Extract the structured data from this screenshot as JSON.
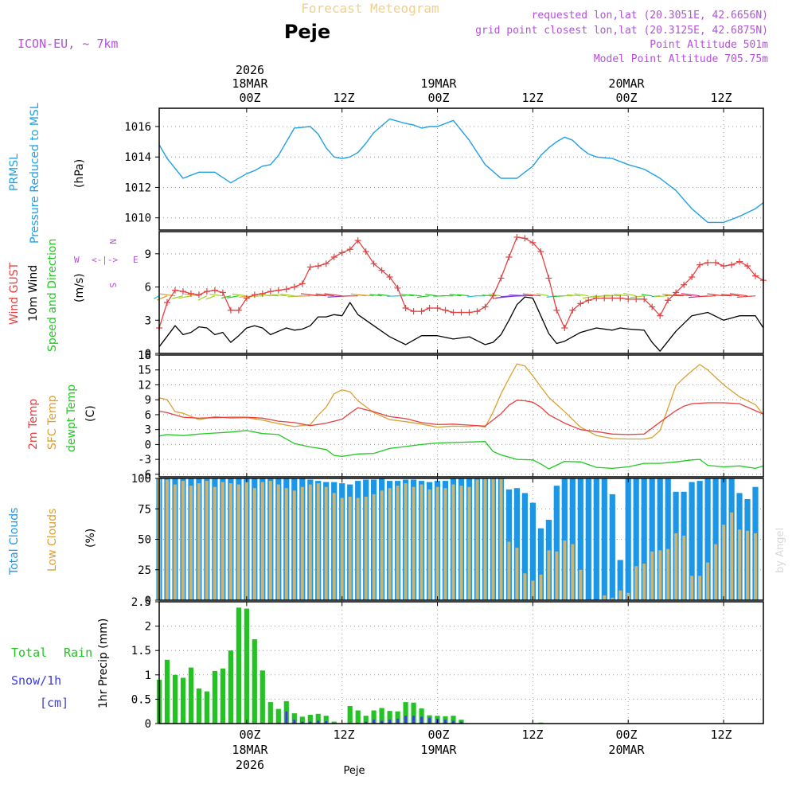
{
  "header": {
    "product_title": "Forecast Meteogram",
    "location": "Peje",
    "model": "ICON-EU, ~ 7km",
    "requested": "requested lon,lat (20.3051E, 42.6656N)",
    "grid_point": "grid point closest lon,lat (20.3125E, 42.6875N)",
    "point_altitude": "Point Altitude 501m",
    "model_altitude": "Model Point Altitude 705.75m",
    "footer_location": "Peje",
    "credit": "by Angel"
  },
  "time_axis": {
    "top_year": "2026",
    "top_dates": [
      "18MAR",
      "19MAR",
      "20MAR"
    ],
    "top_hours": [
      "00Z",
      "12Z",
      "00Z",
      "12Z",
      "00Z",
      "12Z"
    ],
    "bottom_hours": [
      "00Z",
      "12Z",
      "00Z",
      "12Z",
      "00Z",
      "12Z"
    ],
    "bottom_dates": [
      "18MAR",
      "19MAR",
      "20MAR"
    ],
    "bottom_year": "2026",
    "hours_span": [
      -11,
      65
    ]
  },
  "panel_labels": {
    "pressure": [
      "PRMSL",
      "Pressure Reduced to MSL",
      "(hPa)"
    ],
    "wind": [
      "Wind GUST",
      "10m Wind",
      "Speed and Direction",
      "(m/s)"
    ],
    "compass": {
      "n": "N",
      "s": "S",
      "w": "W",
      "e": "E",
      "arrows": "<-|->"
    },
    "temp": [
      "2m Temp",
      "SFC Temp",
      "dewpt Temp",
      "(C)"
    ],
    "clouds": [
      "Total Clouds",
      "Low Clouds",
      "(%)"
    ],
    "precip": [
      "Total",
      "Rain",
      "Snow/1h",
      "[cm]",
      "1hr Precip (mm)"
    ]
  },
  "colors": {
    "pressure": "#1ea0e6",
    "gust": "#e84040",
    "wind": "#000000",
    "t2m": "#e84040",
    "sfc": "#dca030",
    "dewpt": "#22c822",
    "total_clouds": "#1e96e6",
    "low_clouds": "#c8b478",
    "rain": "#22c322",
    "snow": "#3c3cdc",
    "purple": "#b450dc"
  },
  "chart_data": [
    {
      "type": "line",
      "title": "PRMSL Pressure Reduced to MSL",
      "ylabel": "(hPa)",
      "ylim": [
        1009.2,
        1017.2
      ],
      "yticks": [
        1010,
        1012,
        1014,
        1016
      ],
      "hours": [
        -11,
        -10,
        -8,
        -6,
        -4,
        -2,
        0,
        1,
        2,
        3,
        4,
        6,
        8,
        9,
        10,
        11,
        12,
        13,
        14,
        15,
        16,
        18,
        20,
        21,
        22,
        23,
        24,
        26,
        28,
        30,
        32,
        34,
        36,
        37,
        38,
        39,
        40,
        41,
        42,
        43,
        44,
        46,
        48,
        50,
        52,
        54,
        56,
        58,
        60,
        62,
        64,
        65
      ],
      "values": [
        1014.8,
        1013.9,
        1012.6,
        1013.0,
        1013.0,
        1012.3,
        1012.9,
        1013.1,
        1013.4,
        1013.5,
        1014.1,
        1015.9,
        1016.0,
        1015.5,
        1014.6,
        1014.0,
        1013.9,
        1014.0,
        1014.3,
        1014.9,
        1015.6,
        1016.5,
        1016.2,
        1016.1,
        1015.9,
        1016.0,
        1016.0,
        1016.4,
        1015.1,
        1013.5,
        1012.6,
        1012.6,
        1013.4,
        1014.1,
        1014.6,
        1015.0,
        1015.3,
        1015.1,
        1014.6,
        1014.2,
        1014.0,
        1013.9,
        1013.5,
        1013.2,
        1012.6,
        1011.8,
        1010.6,
        1009.7,
        1009.7,
        1010.1,
        1010.6,
        1011.0
      ]
    },
    {
      "type": "line",
      "title": "Wind GUST / 10m Wind Speed and Direction",
      "ylabel": "(m/s)",
      "ylim": [
        0,
        11
      ],
      "yticks": [
        0,
        3,
        6,
        9
      ],
      "series": [
        {
          "name": "Wind GUST",
          "hours": [
            -11,
            -10,
            -9,
            -8,
            -7,
            -6,
            -5,
            -4,
            -3,
            -2,
            -1,
            0,
            1,
            2,
            3,
            4,
            5,
            6,
            7,
            8,
            9,
            10,
            11,
            12,
            13,
            14,
            15,
            16,
            17,
            18,
            19,
            20,
            21,
            22,
            23,
            24,
            25,
            26,
            27,
            28,
            29,
            30,
            31,
            32,
            33,
            34,
            35,
            36,
            37,
            38,
            39,
            40,
            41,
            42,
            43,
            44,
            45,
            46,
            47,
            48,
            49,
            50,
            51,
            52,
            53,
            54,
            55,
            56,
            57,
            58,
            59,
            60,
            61,
            62,
            63,
            64,
            65
          ],
          "values": [
            2.3,
            4.6,
            5.7,
            5.6,
            5.4,
            5.3,
            5.6,
            5.7,
            5.5,
            3.9,
            3.9,
            5.0,
            5.3,
            5.4,
            5.6,
            5.7,
            5.8,
            6.0,
            6.3,
            7.8,
            7.9,
            8.1,
            8.7,
            9.1,
            9.4,
            10.2,
            9.2,
            8.1,
            7.5,
            6.9,
            5.9,
            4.1,
            3.8,
            3.8,
            4.1,
            4.1,
            3.9,
            3.7,
            3.7,
            3.7,
            3.8,
            4.2,
            5.2,
            6.8,
            8.7,
            10.5,
            10.4,
            10.0,
            9.2,
            6.8,
            3.9,
            2.3,
            3.9,
            4.5,
            4.8,
            5.0,
            5.0,
            5.0,
            5.0,
            4.9,
            4.9,
            4.9,
            4.2,
            3.4,
            4.8,
            5.5,
            6.2,
            6.9,
            8.0,
            8.2,
            8.2,
            7.9,
            8.0,
            8.3,
            7.9,
            7.0,
            6.6
          ]
        },
        {
          "name": "10m Wind",
          "hours": [
            -11,
            -9,
            -8,
            -7,
            -6,
            -5,
            -4,
            -3,
            -2,
            -1,
            0,
            1,
            2,
            3,
            4,
            5,
            6,
            7,
            8,
            9,
            10,
            11,
            12,
            13,
            14,
            16,
            18,
            20,
            22,
            24,
            26,
            28,
            30,
            31,
            32,
            33,
            34,
            35,
            36,
            37,
            38,
            39,
            40,
            42,
            44,
            46,
            47,
            48,
            50,
            51,
            52,
            54,
            56,
            58,
            60,
            62,
            64,
            65
          ],
          "values": [
            0.6,
            2.5,
            1.7,
            1.9,
            2.4,
            2.3,
            1.7,
            1.9,
            1.0,
            1.6,
            2.3,
            2.5,
            2.3,
            1.7,
            2.0,
            2.3,
            2.1,
            2.2,
            2.5,
            3.3,
            3.3,
            3.5,
            3.4,
            4.6,
            3.5,
            2.5,
            1.5,
            0.8,
            1.6,
            1.6,
            1.3,
            1.5,
            0.8,
            1.0,
            1.7,
            3.0,
            4.4,
            5.1,
            5.0,
            3.4,
            1.8,
            0.9,
            1.1,
            1.9,
            2.3,
            2.1,
            2.3,
            2.2,
            2.1,
            1.0,
            0.2,
            2.0,
            3.4,
            3.7,
            3.0,
            3.4,
            3.4,
            2.3
          ]
        }
      ],
      "wind_barbs_note": "wind direction arrows drawn at ~5.3 m/s level, colored by speed"
    },
    {
      "type": "line",
      "title": "Temperatures",
      "ylabel": "(C)",
      "ylim": [
        -6.5,
        18
      ],
      "yticks": [
        -6,
        -3,
        0,
        3,
        6,
        9,
        12,
        15,
        18
      ],
      "series": [
        {
          "name": "2m Temp",
          "hours": [
            -11,
            -10,
            -8,
            -6,
            -4,
            -2,
            0,
            2,
            4,
            6,
            8,
            10,
            12,
            13,
            14,
            16,
            18,
            20,
            22,
            24,
            26,
            28,
            30,
            32,
            33,
            34,
            35,
            36,
            37,
            38,
            40,
            42,
            44,
            46,
            48,
            50,
            52,
            54,
            55,
            56,
            58,
            60,
            62,
            64,
            65
          ],
          "values": [
            6.7,
            6.4,
            5.5,
            5.3,
            5.4,
            5.5,
            5.5,
            5.3,
            4.7,
            4.4,
            3.8,
            4.3,
            5.1,
            6.3,
            7.4,
            6.6,
            5.6,
            5.2,
            4.4,
            4.0,
            4.1,
            3.9,
            3.7,
            6.2,
            7.9,
            8.9,
            8.8,
            8.5,
            7.5,
            6.0,
            4.3,
            3.0,
            2.6,
            2.1,
            2.0,
            2.1,
            4.5,
            6.8,
            7.7,
            8.2,
            8.4,
            8.4,
            8.2,
            6.8,
            6.1
          ]
        },
        {
          "name": "SFC Temp",
          "hours": [
            -11,
            -10,
            -9,
            -8,
            -6,
            -4,
            -2,
            0,
            2,
            4,
            6,
            8,
            9,
            10,
            11,
            12,
            13,
            14,
            16,
            18,
            20,
            22,
            24,
            26,
            28,
            29,
            30,
            31,
            32,
            33,
            34,
            35,
            36,
            37,
            38,
            40,
            42,
            44,
            46,
            48,
            49,
            50,
            51,
            52,
            54,
            55,
            56,
            57,
            58,
            60,
            62,
            64,
            65
          ],
          "values": [
            9.4,
            9.0,
            6.6,
            6.3,
            5.0,
            5.6,
            5.3,
            5.4,
            4.9,
            4.2,
            3.6,
            4.0,
            5.9,
            7.5,
            10.2,
            11.0,
            10.6,
            8.8,
            6.4,
            5.0,
            4.6,
            4.1,
            3.5,
            3.7,
            3.6,
            3.8,
            3.5,
            6.5,
            10.2,
            13.3,
            16.2,
            15.8,
            13.8,
            11.6,
            9.5,
            6.6,
            3.5,
            1.8,
            1.2,
            1.1,
            1.1,
            1.1,
            1.4,
            2.8,
            11.8,
            13.4,
            14.8,
            16.1,
            15.0,
            12.0,
            9.6,
            8.0,
            6.0
          ]
        },
        {
          "name": "dewpt Temp",
          "hours": [
            -11,
            -10,
            -8,
            -6,
            -4,
            -2,
            0,
            2,
            4,
            6,
            8,
            10,
            11,
            12,
            14,
            16,
            18,
            20,
            22,
            24,
            26,
            28,
            30,
            31,
            32,
            34,
            36,
            37,
            38,
            40,
            42,
            44,
            46,
            48,
            50,
            52,
            54,
            56,
            57,
            58,
            60,
            62,
            64,
            65
          ],
          "values": [
            1.7,
            2.0,
            1.8,
            2.1,
            2.3,
            2.5,
            2.8,
            2.2,
            2.0,
            0.2,
            -0.5,
            -1.0,
            -2.2,
            -2.4,
            -1.9,
            -1.8,
            -0.8,
            -0.4,
            0.0,
            0.3,
            0.4,
            0.5,
            0.6,
            -1.4,
            -2.1,
            -3.0,
            -3.1,
            -3.9,
            -4.9,
            -3.4,
            -3.5,
            -4.6,
            -4.8,
            -4.5,
            -3.8,
            -3.8,
            -3.5,
            -3.1,
            -3.0,
            -4.2,
            -4.5,
            -4.3,
            -4.8,
            -4.3
          ]
        }
      ]
    },
    {
      "type": "bar",
      "title": "Clouds",
      "ylabel": "(%)",
      "ylim": [
        0,
        100
      ],
      "yticks": [
        0,
        25,
        50,
        75,
        100
      ],
      "hours_start": -11,
      "hours_step": 1,
      "series": [
        {
          "name": "Total Clouds",
          "values": [
            100,
            100,
            100,
            100,
            100,
            100,
            100,
            100,
            100,
            100,
            100,
            100,
            100,
            100,
            100,
            100,
            100,
            100,
            100,
            99,
            98,
            97,
            97,
            96,
            95,
            98,
            99,
            99,
            100,
            98,
            98,
            99,
            99,
            98,
            97,
            98,
            98,
            100,
            100,
            100,
            100,
            100,
            100,
            100,
            91,
            92,
            88,
            80,
            59,
            66,
            94,
            100,
            100,
            100,
            100,
            100,
            100,
            87,
            33,
            100,
            100,
            100,
            100,
            100,
            100,
            89,
            89,
            97,
            98,
            100,
            100,
            100,
            100,
            88,
            83,
            93,
            98,
            90,
            80
          ]
        },
        {
          "name": "Low Clouds",
          "values": [
            100,
            99,
            95,
            98,
            94,
            96,
            98,
            93,
            97,
            96,
            95,
            97,
            92,
            97,
            98,
            95,
            92,
            90,
            93,
            95,
            96,
            93,
            88,
            84,
            85,
            84,
            85,
            87,
            90,
            92,
            94,
            96,
            93,
            95,
            91,
            93,
            92,
            95,
            94,
            93,
            99,
            100,
            100,
            100,
            48,
            43,
            22,
            16,
            21,
            41,
            40,
            49,
            46,
            25,
            0,
            0,
            4,
            2,
            8,
            6,
            28,
            30,
            40,
            41,
            42,
            55,
            53,
            20,
            20,
            31,
            46,
            62,
            72,
            58,
            57,
            55,
            44,
            51,
            47
          ]
        }
      ]
    },
    {
      "type": "bar",
      "title": "1hr Precip",
      "ylabel": "1hr Precip (mm)",
      "ylim": [
        0,
        2.5
      ],
      "yticks": [
        0,
        0.5,
        1,
        1.5,
        2,
        2.5
      ],
      "hours_start": -11,
      "hours_step": 1,
      "series": [
        {
          "name": "Total Rain",
          "values": [
            0.9,
            1.31,
            1.0,
            0.94,
            1.15,
            0.72,
            0.66,
            1.08,
            1.13,
            1.5,
            2.38,
            2.36,
            1.73,
            1.09,
            0.44,
            0.3,
            0.46,
            0.21,
            0.14,
            0.18,
            0.2,
            0.16,
            0.04,
            0,
            0.36,
            0.27,
            0.16,
            0.27,
            0.32,
            0.26,
            0.25,
            0.44,
            0.43,
            0.31,
            0.17,
            0.16,
            0.15,
            0.16,
            0.08,
            0,
            0,
            0,
            0,
            0,
            0,
            0,
            0,
            0,
            0.02,
            0,
            0,
            0,
            0,
            0,
            0,
            0,
            0,
            0,
            0,
            0,
            0,
            0,
            0,
            0,
            0,
            0,
            0,
            0,
            0,
            0,
            0,
            0,
            0,
            0,
            0,
            0,
            0
          ]
        },
        {
          "name": "Snow/1h",
          "values": [
            0,
            0,
            0,
            0,
            0,
            0,
            0,
            0,
            0,
            0,
            0,
            0,
            0,
            0,
            0,
            0.02,
            0.25,
            0.08,
            0.04,
            0.04,
            0.06,
            0.05,
            0,
            0,
            0,
            0,
            0.04,
            0.08,
            0.06,
            0.08,
            0.1,
            0.16,
            0.16,
            0.14,
            0.12,
            0.1,
            0.08,
            0.06,
            0.04,
            0,
            0,
            0,
            0,
            0,
            0,
            0,
            0,
            0,
            0,
            0,
            0,
            0,
            0,
            0,
            0,
            0,
            0,
            0,
            0,
            0,
            0,
            0,
            0,
            0,
            0,
            0,
            0,
            0,
            0,
            0,
            0,
            0,
            0,
            0,
            0,
            0,
            0
          ]
        }
      ]
    }
  ]
}
